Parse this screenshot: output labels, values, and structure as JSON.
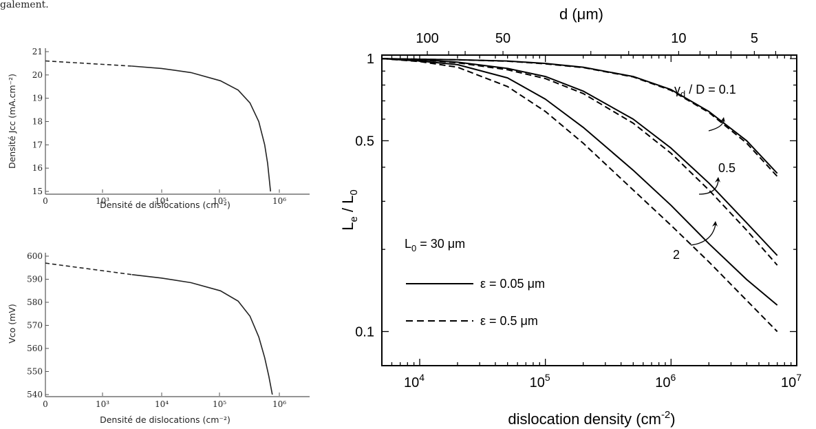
{
  "header_fragment": "galement.",
  "chart_data": [
    {
      "type": "line",
      "xlabel": "Densité de dislocations (cm⁻²)",
      "ylabel": "Densité Jcc (mA.cm⁻²)",
      "x_ticks": [
        "0",
        "10³",
        "10⁴",
        "10⁵",
        "10⁶"
      ],
      "y_ticks": [
        "21",
        "20",
        "19",
        "18",
        "17",
        "16",
        "15"
      ],
      "ylim": [
        15,
        21
      ],
      "series": [
        {
          "style": "dashed",
          "x_log": [
            2.0,
            3.5
          ],
          "y": [
            20.6,
            20.38
          ]
        },
        {
          "style": "solid",
          "x_log": [
            3.5,
            4.0,
            4.5,
            5.0,
            5.3,
            5.5,
            5.65,
            5.75,
            5.8,
            5.85
          ],
          "y": [
            20.38,
            20.28,
            20.1,
            19.75,
            19.35,
            18.8,
            18.0,
            17.0,
            16.2,
            15.0
          ]
        }
      ]
    },
    {
      "type": "line",
      "xlabel": "Densité de dislocations (cm⁻²)",
      "ylabel": "Vco (mV)",
      "x_ticks": [
        "0",
        "10³",
        "10⁴",
        "10⁵",
        "10⁶"
      ],
      "y_ticks": [
        "600",
        "590",
        "580",
        "570",
        "560",
        "550",
        "540"
      ],
      "ylim": [
        540,
        600
      ],
      "series": [
        {
          "style": "dashed",
          "x_log": [
            2.0,
            3.5
          ],
          "y": [
            597,
            592
          ]
        },
        {
          "style": "solid",
          "x_log": [
            3.5,
            4.0,
            4.5,
            5.0,
            5.3,
            5.5,
            5.65,
            5.75,
            5.82,
            5.88
          ],
          "y": [
            592,
            590.5,
            588.5,
            585,
            580.5,
            574,
            565,
            556,
            548,
            540
          ]
        }
      ]
    },
    {
      "type": "line",
      "xlabel": "dislocation density (cm",
      "xlabel_sup": "-2",
      "xlabel_end": ")",
      "ylabel": "L",
      "ylabel_sub1": "e",
      "ylabel_mid": " / L",
      "ylabel_sub2": "0",
      "top_axis_label": "d (μm)",
      "top_ticks": [
        "100",
        "50",
        "10",
        "5"
      ],
      "x_ticks": [
        "10",
        "10",
        "10",
        "10"
      ],
      "x_tick_exps": [
        "4",
        "5",
        "6",
        "7"
      ],
      "y_ticks": [
        "1",
        "0.5",
        "0.1"
      ],
      "xlim": [
        5000,
        10000000
      ],
      "ylim": [
        0.075,
        1.03
      ],
      "scale": "log-log",
      "annotations": {
        "gamma_label": "γ",
        "gamma_sub": "d",
        "gamma_rest": " / D = 0.1",
        "mid_label": "0.5",
        "low_label": "2",
        "L0_label": "L",
        "L0_sub": "0",
        "L0_rest": " = 30 μm"
      },
      "legend": {
        "solid": "ε = 0.05 μm",
        "dashed": "ε = 0.5 μm"
      },
      "series": [
        {
          "gamma_over_D": 0.1,
          "style": "solid",
          "x": [
            5000,
            10000,
            20000,
            50000,
            100000,
            200000,
            500000,
            1000000,
            2000000,
            4000000,
            7000000
          ],
          "y": [
            1.0,
            0.995,
            0.99,
            0.98,
            0.96,
            0.93,
            0.86,
            0.77,
            0.64,
            0.5,
            0.38
          ]
        },
        {
          "gamma_over_D": 0.1,
          "style": "dashed",
          "x": [
            5000,
            10000,
            20000,
            50000,
            100000,
            200000,
            500000,
            1000000,
            2000000,
            4000000,
            7000000
          ],
          "y": [
            1.0,
            0.995,
            0.99,
            0.978,
            0.957,
            0.927,
            0.857,
            0.765,
            0.635,
            0.49,
            0.37
          ]
        },
        {
          "gamma_over_D": 0.5,
          "style": "solid",
          "x": [
            5000,
            10000,
            20000,
            50000,
            100000,
            200000,
            500000,
            1000000,
            2000000,
            4000000,
            7000000
          ],
          "y": [
            1.0,
            0.99,
            0.97,
            0.92,
            0.86,
            0.76,
            0.6,
            0.47,
            0.35,
            0.25,
            0.19
          ]
        },
        {
          "gamma_over_D": 0.5,
          "style": "dashed",
          "x": [
            5000,
            10000,
            20000,
            50000,
            100000,
            200000,
            500000,
            1000000,
            2000000,
            4000000,
            7000000
          ],
          "y": [
            1.0,
            0.99,
            0.965,
            0.91,
            0.845,
            0.745,
            0.58,
            0.45,
            0.33,
            0.235,
            0.175
          ]
        },
        {
          "gamma_over_D": 2,
          "style": "solid",
          "x": [
            5000,
            10000,
            20000,
            50000,
            100000,
            200000,
            500000,
            1000000,
            2000000,
            4000000,
            7000000
          ],
          "y": [
            1.0,
            0.98,
            0.95,
            0.85,
            0.71,
            0.56,
            0.39,
            0.29,
            0.21,
            0.155,
            0.125
          ]
        },
        {
          "gamma_over_D": 2,
          "style": "dashed",
          "x": [
            5000,
            10000,
            20000,
            50000,
            100000,
            200000,
            500000,
            1000000,
            2000000,
            4000000,
            7000000
          ],
          "y": [
            1.0,
            0.975,
            0.93,
            0.79,
            0.64,
            0.49,
            0.33,
            0.245,
            0.18,
            0.13,
            0.1
          ]
        }
      ]
    }
  ]
}
